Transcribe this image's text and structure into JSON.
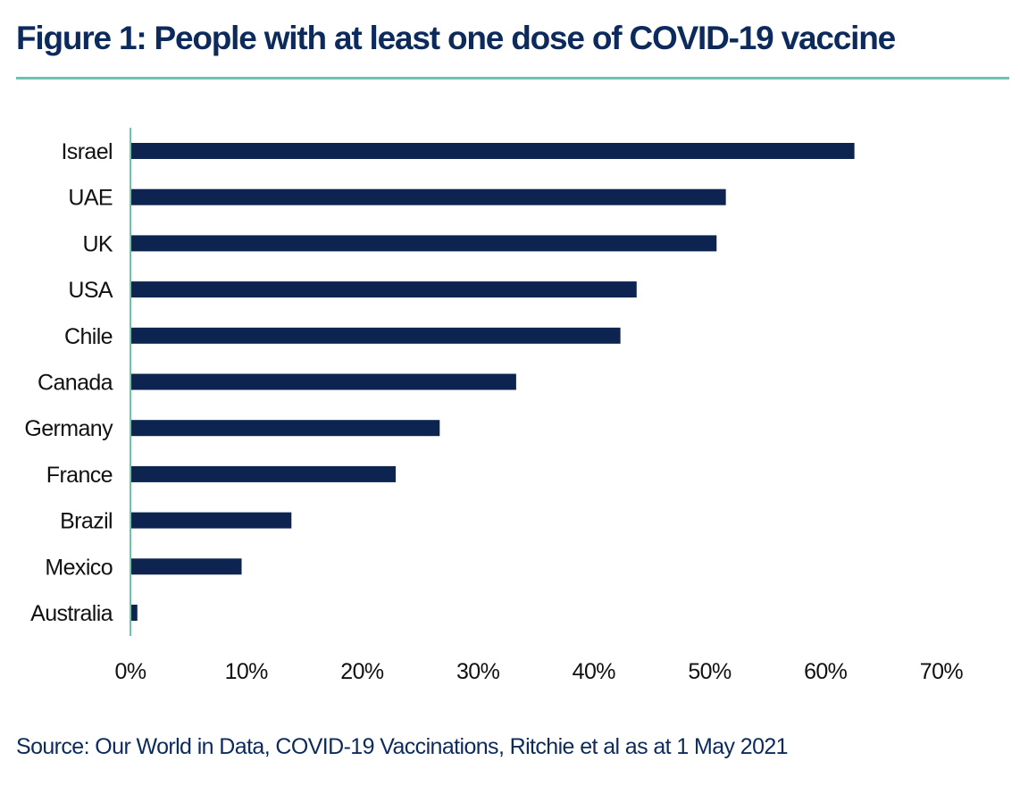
{
  "title": "Figure 1: People with at least one dose of COVID-19 vaccine",
  "source": "Source: Our World in Data, COVID-19 Vaccinations, Ritchie et al as at 1 May 2021",
  "colors": {
    "bar": "#0d2451",
    "accent_rule": "#6cc4ae",
    "axis_line": "#6cc4ae",
    "title_text": "#0d2a5c"
  },
  "chart_data": {
    "type": "bar",
    "orientation": "horizontal",
    "categories": [
      "Israel",
      "UAE",
      "UK",
      "USA",
      "Chile",
      "Canada",
      "Germany",
      "France",
      "Brazil",
      "Mexico",
      "Australia"
    ],
    "values": [
      62.5,
      51.4,
      50.6,
      43.7,
      42.3,
      33.3,
      26.7,
      22.9,
      13.9,
      9.6,
      0.6
    ],
    "unit": "%",
    "xlim": [
      0,
      70
    ],
    "xticks": [
      0,
      10,
      20,
      30,
      40,
      50,
      60,
      70
    ],
    "xtick_labels": [
      "0%",
      "10%",
      "20%",
      "30%",
      "40%",
      "50%",
      "60%",
      "70%"
    ],
    "xlabel": "",
    "ylabel": "",
    "grid": false,
    "legend": "none"
  }
}
